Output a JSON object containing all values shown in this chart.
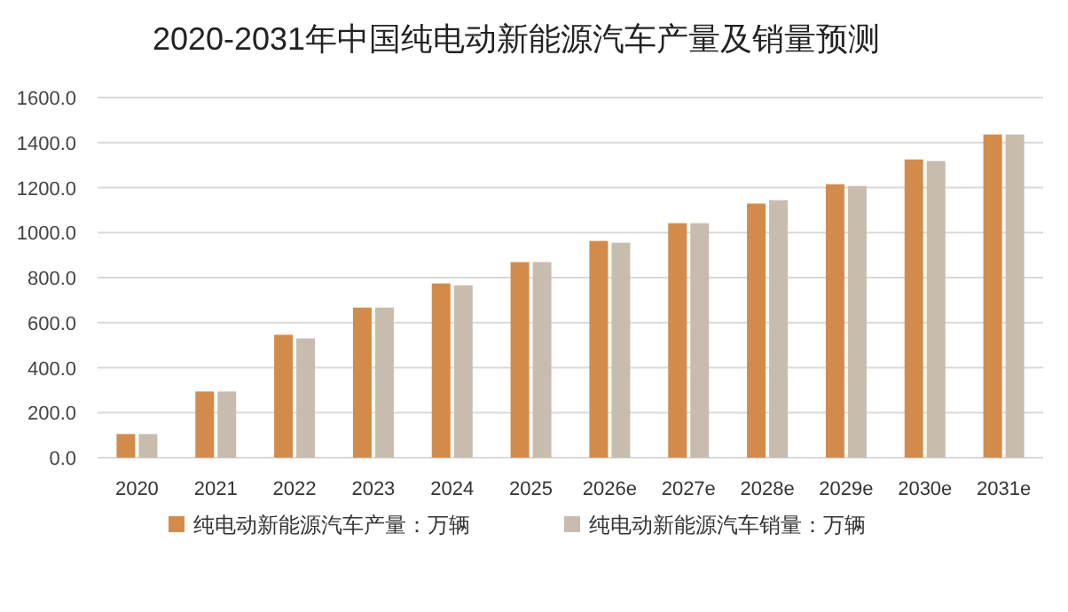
{
  "chart_data": {
    "type": "bar",
    "title": "2020-2031年中国纯电动新能源汽车产量及销量预测",
    "categories": [
      "2020",
      "2021",
      "2022",
      "2023",
      "2024",
      "2025",
      "2026e",
      "2027e",
      "2028e",
      "2029e",
      "2030e",
      "2031e"
    ],
    "series": [
      {
        "name": "纯电动新能源汽车产量：万辆",
        "color": "#d38b4c",
        "values": [
          105,
          294,
          546,
          667,
          774,
          869,
          963,
          1042,
          1129,
          1215,
          1325,
          1436
        ]
      },
      {
        "name": "纯电动新能源汽车销量：万辆",
        "color": "#c8bcaf",
        "values": [
          105,
          294,
          530,
          667,
          766,
          869,
          955,
          1042,
          1144,
          1207,
          1318,
          1436
        ]
      }
    ],
    "ylim": [
      0,
      1600
    ],
    "yticks": [
      {
        "value": 0,
        "label": "0.0"
      },
      {
        "value": 200,
        "label": "200.0"
      },
      {
        "value": 400,
        "label": "400.0"
      },
      {
        "value": 600,
        "label": "600.0"
      },
      {
        "value": 800,
        "label": "800.0"
      },
      {
        "value": 1000,
        "label": "1000.0"
      },
      {
        "value": 1200,
        "label": "1200.0"
      },
      {
        "value": 1400,
        "label": "1400.0"
      },
      {
        "value": 1600,
        "label": "1600.0"
      }
    ],
    "grid": "y",
    "legend": "bottom"
  }
}
